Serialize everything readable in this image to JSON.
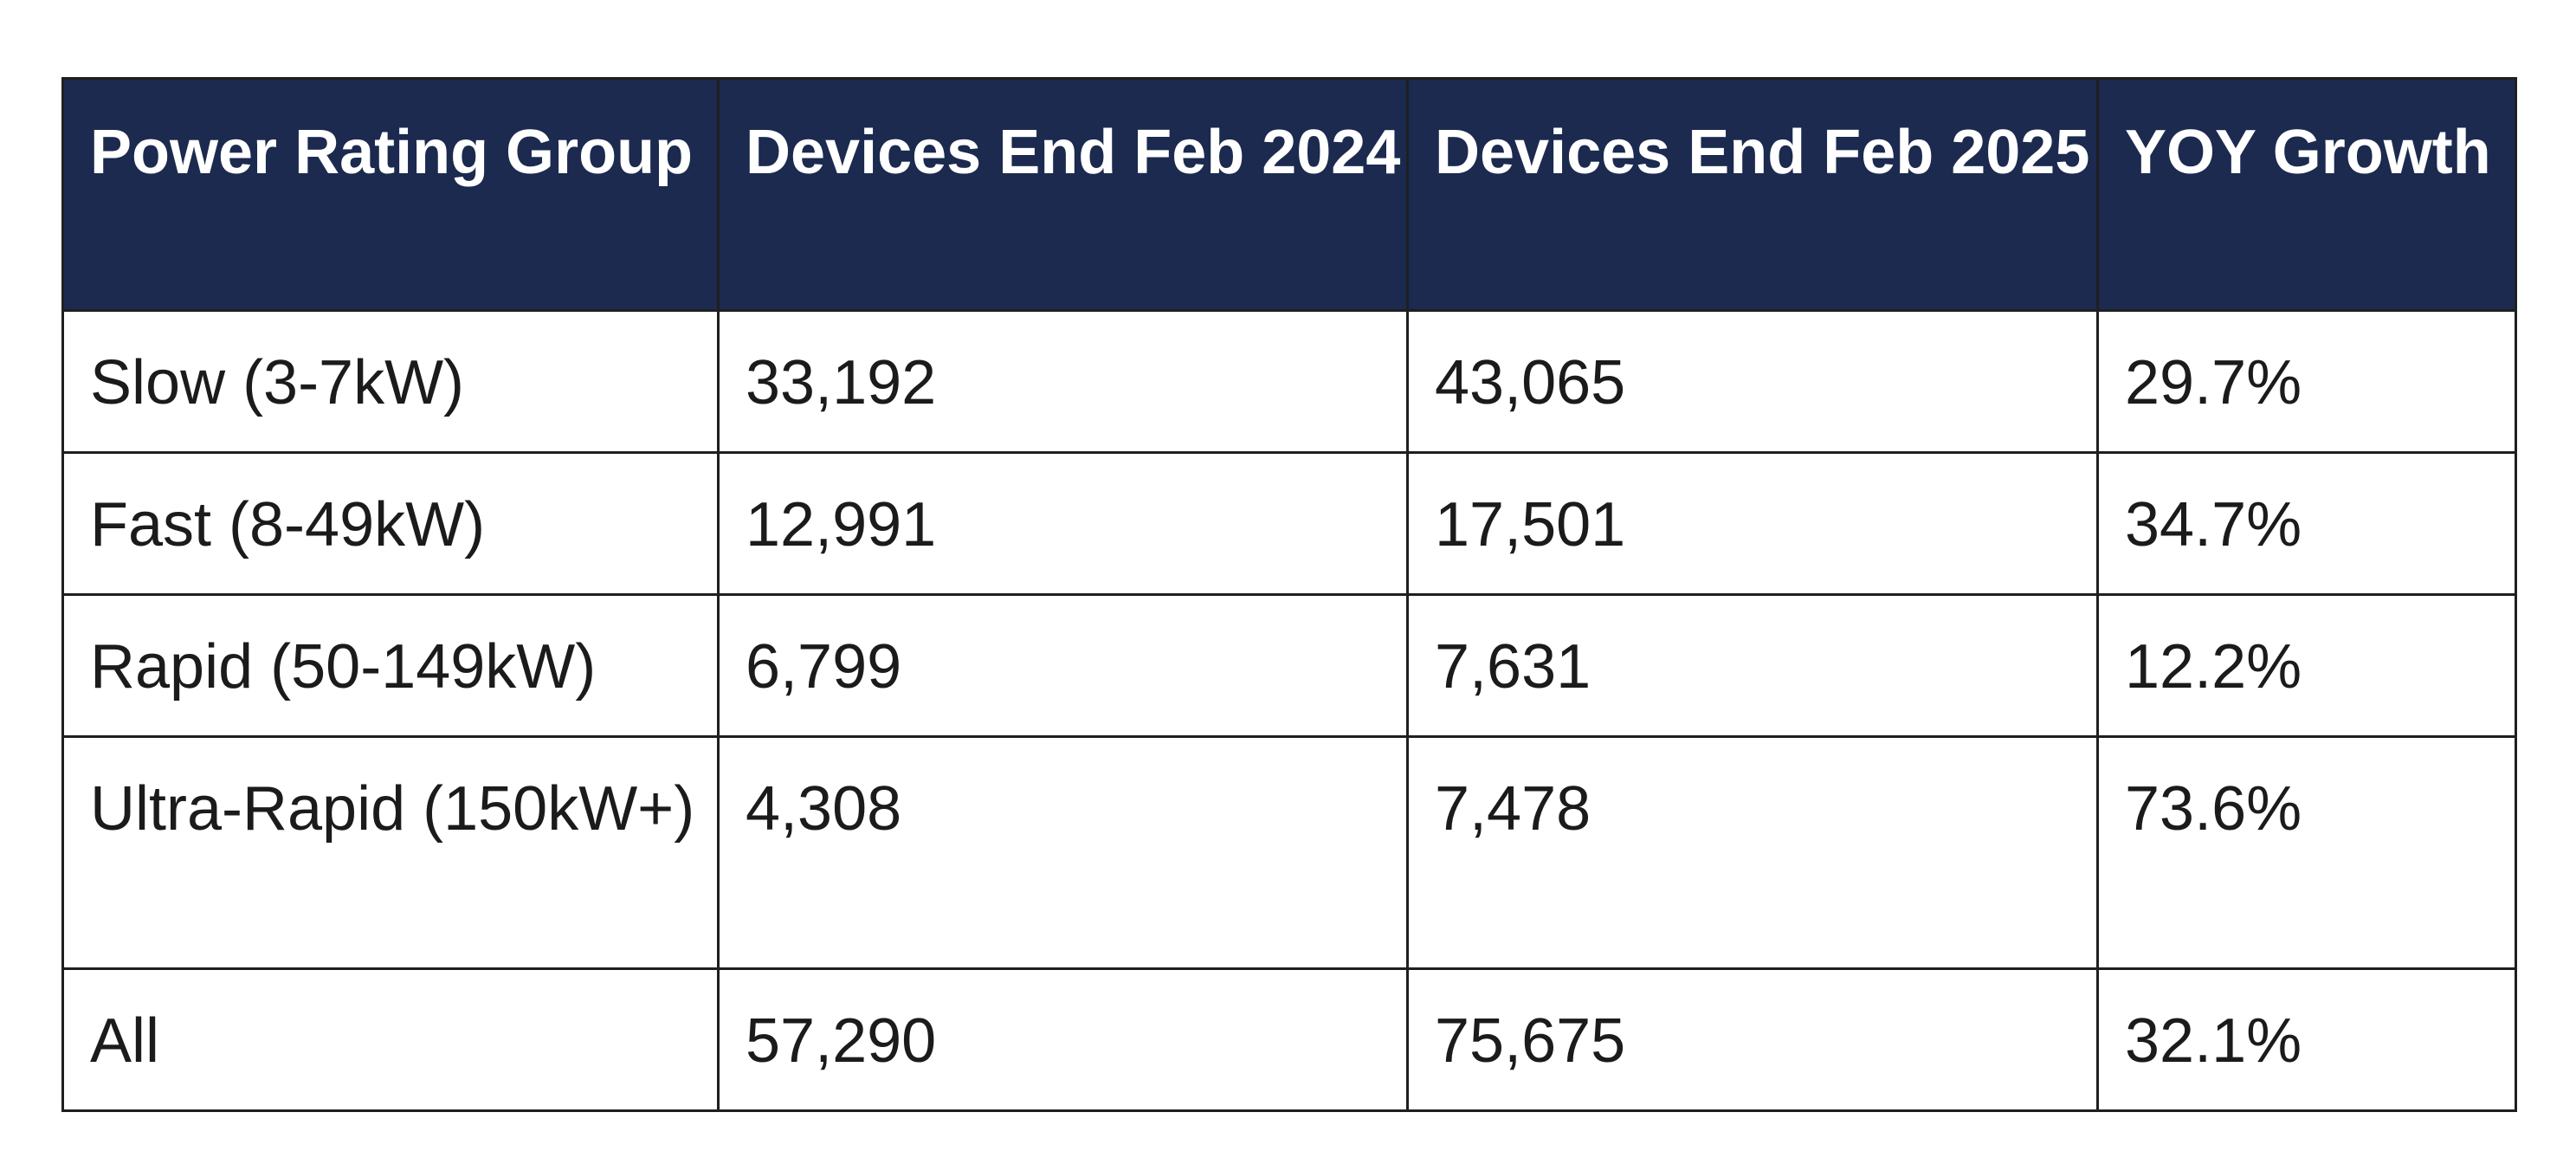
{
  "table": {
    "headers": [
      "Power Rating Group",
      "Devices End Feb 2024",
      "Devices End Feb 2025",
      "YOY Growth"
    ],
    "rows": [
      [
        "Slow (3-7kW)",
        "33,192",
        "43,065",
        "29.7%"
      ],
      [
        "Fast (8-49kW)",
        "12,991",
        "17,501",
        "34.7%"
      ],
      [
        "Rapid (50-149kW)",
        "6,799",
        "7,631",
        "12.2%"
      ],
      [
        "Ultra-Rapid (150kW+)",
        "4,308",
        "7,478",
        "73.6%"
      ],
      [
        "All",
        "57,290",
        "75,675",
        "32.1%"
      ]
    ]
  },
  "colors": {
    "header_bg": "#1b2a4e",
    "header_text": "#ffffff",
    "border": "#1f1f1f",
    "body_text": "#1b1b1b"
  }
}
